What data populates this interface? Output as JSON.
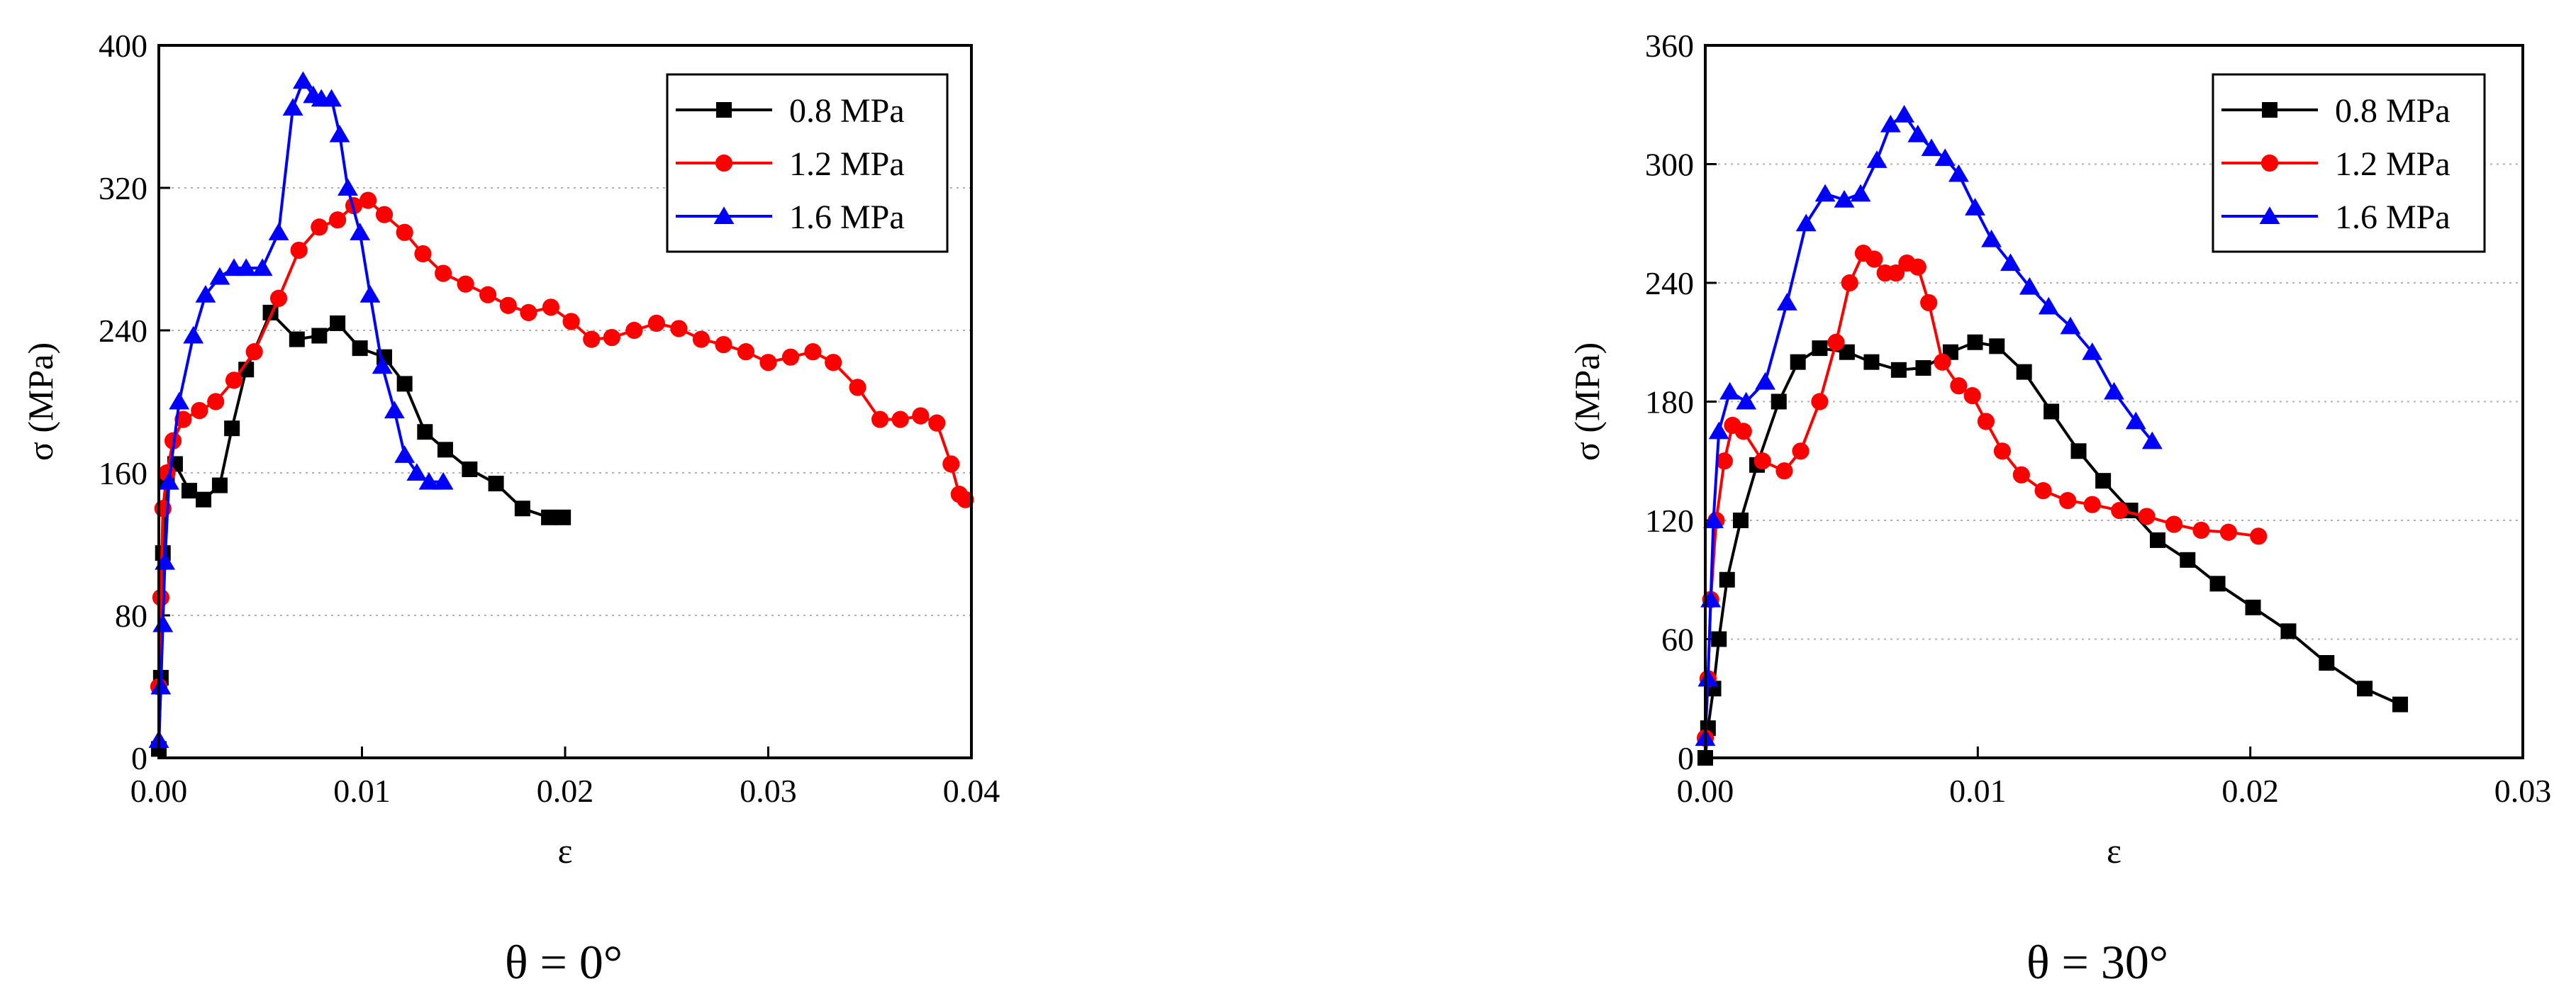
{
  "chart_data": [
    {
      "type": "line",
      "caption": "θ = 0°",
      "xlabel": "ε",
      "ylabel": "σ (MPa)",
      "xlim": [
        0,
        0.04
      ],
      "ylim": [
        0,
        400
      ],
      "xticks": [
        0,
        0.01,
        0.02,
        0.03,
        0.04
      ],
      "xtick_labels": [
        "0.00",
        "0.01",
        "0.02",
        "0.03",
        "0.04"
      ],
      "yticks": [
        0,
        80,
        160,
        240,
        320,
        400
      ],
      "ytick_labels": [
        "0",
        "80",
        "160",
        "240",
        "320",
        "400"
      ],
      "grid": "horizontal dotted",
      "legend_position": "top-right",
      "series": [
        {
          "name": "0.8 MPa",
          "color": "#000000",
          "marker": "square",
          "x": [
            0,
            0.0001,
            0.0002,
            0.0004,
            0.0008,
            0.0015,
            0.0022,
            0.003,
            0.0036,
            0.0043,
            0.0055,
            0.0068,
            0.0079,
            0.0088,
            0.0099,
            0.0111,
            0.0121,
            0.0131,
            0.0141,
            0.0153,
            0.0166,
            0.0179,
            0.0192,
            0.0199
          ],
          "y": [
            5,
            45,
            115,
            155,
            165,
            150,
            145,
            153,
            185,
            218,
            250,
            235,
            237,
            244,
            230,
            225,
            210,
            183,
            173,
            162,
            154,
            140,
            135,
            135
          ]
        },
        {
          "name": "1.2 MPa",
          "color": "#ff0000",
          "marker": "circle",
          "x": [
            0,
            0.0001,
            0.0002,
            0.0004,
            0.0007,
            0.0012,
            0.002,
            0.0028,
            0.0037,
            0.0047,
            0.0059,
            0.0069,
            0.0079,
            0.0088,
            0.0096,
            0.0103,
            0.0111,
            0.0121,
            0.013,
            0.014,
            0.0151,
            0.0162,
            0.0172,
            0.0182,
            0.0193,
            0.0203,
            0.0213,
            0.0223,
            0.0234,
            0.0245,
            0.0256,
            0.0267,
            0.0278,
            0.0289,
            0.03,
            0.0311,
            0.0322,
            0.0332,
            0.0344,
            0.0355,
            0.0365,
            0.0375,
            0.0383,
            0.039,
            0.0394,
            0.0397
          ],
          "y": [
            40,
            90,
            140,
            160,
            178,
            190,
            195,
            200,
            212,
            228,
            258,
            285,
            298,
            302,
            310,
            313,
            305,
            295,
            283,
            272,
            266,
            260,
            254,
            250,
            253,
            245,
            235,
            236,
            240,
            244,
            241,
            235,
            232,
            228,
            222,
            225,
            228,
            222,
            208,
            190,
            190,
            192,
            188,
            165,
            148,
            145
          ]
        },
        {
          "name": "1.6 MPa",
          "color": "#0000ff",
          "marker": "triangle",
          "x": [
            0,
            0.0001,
            0.0002,
            0.0003,
            0.0005,
            0.001,
            0.0017,
            0.0023,
            0.003,
            0.0037,
            0.0043,
            0.0051,
            0.0059,
            0.0066,
            0.0071,
            0.0076,
            0.008,
            0.0085,
            0.0089,
            0.0093,
            0.0099,
            0.0104,
            0.011,
            0.0116,
            0.0121,
            0.0127,
            0.0133,
            0.014
          ],
          "y": [
            10,
            40,
            75,
            110,
            155,
            200,
            237,
            260,
            270,
            275,
            275,
            275,
            295,
            365,
            380,
            372,
            370,
            370,
            350,
            320,
            295,
            260,
            220,
            195,
            170,
            160,
            155,
            155
          ]
        }
      ]
    },
    {
      "type": "line",
      "caption": "θ = 30°",
      "xlabel": "ε",
      "ylabel": "σ (MPa)",
      "xlim": [
        0,
        0.03
      ],
      "ylim": [
        0,
        360
      ],
      "xticks": [
        0,
        0.01,
        0.02,
        0.03
      ],
      "xtick_labels": [
        "0.00",
        "0.01",
        "0.02",
        "0.03"
      ],
      "yticks": [
        0,
        60,
        120,
        180,
        240,
        300,
        360
      ],
      "ytick_labels": [
        "0",
        "60",
        "120",
        "180",
        "240",
        "300",
        "360"
      ],
      "grid": "horizontal dotted",
      "legend_position": "top-right",
      "series": [
        {
          "name": "0.8 MPa",
          "color": "#000000",
          "marker": "square",
          "x": [
            0,
            0.0001,
            0.0003,
            0.0005,
            0.0008,
            0.0013,
            0.0019,
            0.0027,
            0.0034,
            0.0042,
            0.0052,
            0.0061,
            0.0071,
            0.008,
            0.009,
            0.0099,
            0.0107,
            0.0117,
            0.0127,
            0.0137,
            0.0146,
            0.0156,
            0.0166,
            0.0177,
            0.0188,
            0.0201,
            0.0214,
            0.0228,
            0.0242,
            0.0255
          ],
          "y": [
            0,
            15,
            35,
            60,
            90,
            120,
            148,
            180,
            200,
            207,
            205,
            200,
            196,
            197,
            205,
            210,
            208,
            195,
            175,
            155,
            140,
            125,
            110,
            100,
            88,
            76,
            64,
            48,
            35,
            27
          ]
        },
        {
          "name": "1.2 MPa",
          "color": "#ff0000",
          "marker": "circle",
          "x": [
            0,
            0.0001,
            0.0002,
            0.0004,
            0.0007,
            0.001,
            0.0014,
            0.0021,
            0.0029,
            0.0035,
            0.0042,
            0.0048,
            0.0053,
            0.0058,
            0.0062,
            0.0066,
            0.007,
            0.0074,
            0.0078,
            0.0082,
            0.0087,
            0.0093,
            0.0098,
            0.0103,
            0.0109,
            0.0116,
            0.0124,
            0.0133,
            0.0142,
            0.0152,
            0.0162,
            0.0172,
            0.0182,
            0.0192,
            0.0203
          ],
          "y": [
            10,
            40,
            80,
            120,
            150,
            168,
            165,
            150,
            145,
            155,
            180,
            210,
            240,
            255,
            252,
            245,
            245,
            250,
            248,
            230,
            200,
            188,
            183,
            170,
            155,
            143,
            135,
            130,
            128,
            125,
            122,
            118,
            115,
            114,
            112
          ]
        },
        {
          "name": "1.6 MPa",
          "color": "#0000ff",
          "marker": "triangle",
          "x": [
            0,
            0.0001,
            0.0002,
            0.0003,
            0.0005,
            0.0009,
            0.0015,
            0.0022,
            0.003,
            0.0037,
            0.0044,
            0.0051,
            0.0057,
            0.0063,
            0.0068,
            0.0073,
            0.0078,
            0.0083,
            0.0088,
            0.0093,
            0.0099,
            0.0105,
            0.0112,
            0.0119,
            0.0126,
            0.0134,
            0.0142,
            0.015,
            0.0158,
            0.0164
          ],
          "y": [
            10,
            40,
            80,
            120,
            165,
            185,
            180,
            190,
            230,
            270,
            285,
            282,
            285,
            302,
            320,
            325,
            315,
            308,
            303,
            295,
            278,
            262,
            250,
            238,
            228,
            218,
            205,
            185,
            170,
            160
          ]
        }
      ]
    }
  ]
}
